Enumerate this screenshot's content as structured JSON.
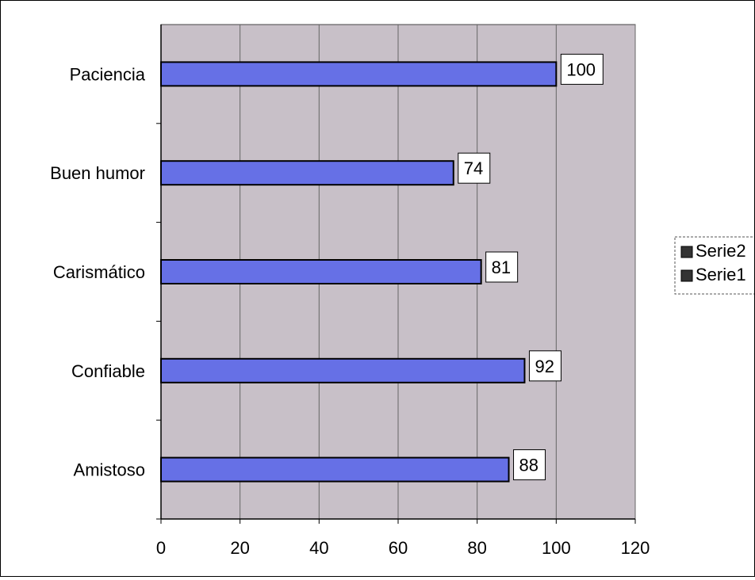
{
  "chart_data": {
    "type": "bar",
    "orientation": "horizontal",
    "categories": [
      "Amistoso",
      "Confiable",
      "Carismático",
      "Buen humor",
      "Paciencia"
    ],
    "series": [
      {
        "name": "Serie1",
        "values": [
          88,
          92,
          81,
          74,
          100
        ]
      }
    ],
    "legend_entries": [
      "Serie2",
      "Serie1"
    ],
    "x_ticks": [
      "0",
      "20",
      "40",
      "60",
      "80",
      "100",
      "120"
    ],
    "xlim": [
      0,
      120
    ],
    "grid": true,
    "legend_position": "right",
    "data_labels": true
  },
  "colors": {
    "plot_background": "#c8c0c8",
    "bar_fill": "#6670e6",
    "bar_stroke": "#000000",
    "gridline": "#666666",
    "label_box": "#ffffff"
  }
}
